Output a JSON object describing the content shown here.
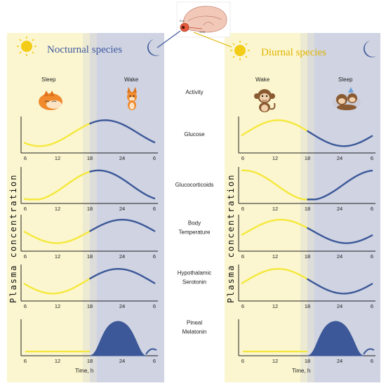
{
  "left_panel": {
    "title": "Nocturnal species",
    "sleep_label": "Sleep",
    "wake_label": "Wake",
    "time_label": "Time, h",
    "y_label": "Plasma concentration"
  },
  "right_panel": {
    "title": "Diurnal species",
    "wake_label": "Wake",
    "sleep_label": "Sleep",
    "time_label": "Time, h",
    "y_label": "Plasma concentration"
  },
  "ticks": [
    "6",
    "12",
    "18",
    "24",
    "6"
  ],
  "rows": [
    {
      "label": [
        "Activity"
      ]
    },
    {
      "label": [
        "Glucose"
      ]
    },
    {
      "label": [
        "Glucocorticoids"
      ]
    },
    {
      "label": [
        "Body",
        "Temperature"
      ]
    },
    {
      "label": [
        "Hypothalamic",
        "Serotonin"
      ]
    },
    {
      "label": [
        "Pineal",
        "Melatonin"
      ]
    }
  ],
  "brain_labels": {
    "eye": "Eye",
    "scn": "SCN"
  },
  "colors": {
    "day": "#f5e83c",
    "night": "#3c5898",
    "day_bg": "#fbf6cf",
    "night_bg": "#cfd3e2"
  },
  "icons": {
    "sun": "sun-icon",
    "moon": "crescent-moon-icon",
    "fox": "fox-icon",
    "monkey": "monkey-icon"
  }
}
